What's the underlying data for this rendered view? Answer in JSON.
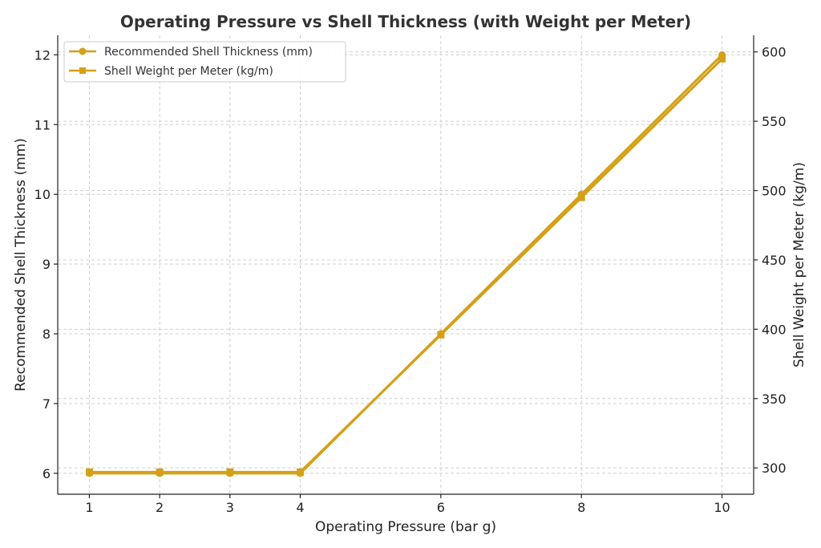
{
  "chart_data": {
    "type": "line",
    "title": "Operating Pressure vs Shell Thickness (with Weight per Meter)",
    "xlabel": "Operating Pressure (bar g)",
    "ylabel_left": "Recommended Shell Thickness (mm)",
    "ylabel_right": "Shell Weight per Meter (kg/m)",
    "x": [
      1,
      2,
      3,
      4,
      6,
      8,
      10
    ],
    "x_ticks": [
      "1",
      "2",
      "3",
      "4",
      "6",
      "8",
      "10"
    ],
    "xlim": [
      0.55,
      10.45
    ],
    "ylim_left": [
      5.7,
      12.28
    ],
    "ylim_right": [
      281,
      612
    ],
    "y_ticks_left": [
      "6",
      "7",
      "8",
      "9",
      "10",
      "11",
      "12"
    ],
    "y_ticks_right": [
      "300",
      "350",
      "400",
      "450",
      "500",
      "550",
      "600"
    ],
    "grid": true,
    "legend_position": "top-left",
    "series": [
      {
        "name": "Recommended Shell Thickness (mm)",
        "axis": "left",
        "marker": "circle",
        "color": "#d4a017",
        "values": [
          6,
          6,
          6,
          6,
          8,
          10,
          12
        ]
      },
      {
        "name": "Shell Weight per Meter (kg/m)",
        "axis": "right",
        "marker": "square",
        "color": "#d4a017",
        "values": [
          297,
          297,
          297,
          297,
          396,
          495,
          595
        ]
      }
    ]
  }
}
